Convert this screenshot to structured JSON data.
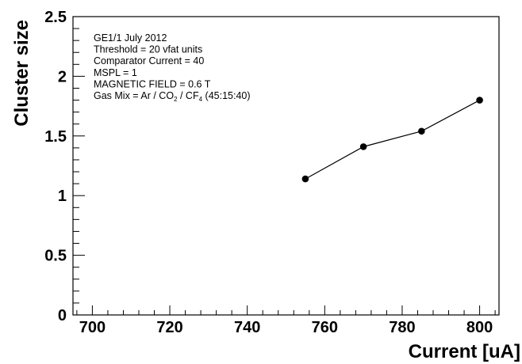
{
  "chart_data": {
    "type": "line",
    "title": "",
    "xlabel": "Current [uA]",
    "ylabel": "Cluster size",
    "xlim": [
      695,
      805
    ],
    "ylim": [
      0,
      2.5
    ],
    "x_ticks": [
      700,
      720,
      740,
      760,
      780,
      800
    ],
    "x_tick_labels": [
      "700",
      "720",
      "740",
      "760",
      "780",
      "800"
    ],
    "y_ticks": [
      0,
      0.5,
      1,
      1.5,
      2,
      2.5
    ],
    "y_tick_labels": [
      "0",
      "0.5",
      "1",
      "1.5",
      "2",
      "2.5"
    ],
    "grid": false,
    "legend": "none",
    "series": [
      {
        "x": [
          755,
          770,
          785,
          800
        ],
        "y": [
          1.14,
          1.41,
          1.54,
          1.8
        ],
        "color": "#000000",
        "marker": "circle"
      }
    ],
    "annotations": [
      {
        "text": "GE1/1 July 2012"
      },
      {
        "text": "Threshold = 20 vfat units"
      },
      {
        "text": "Comparator Current = 40"
      },
      {
        "text": "MSPL = 1"
      },
      {
        "text": "MAGNETIC FIELD = 0.6 T"
      },
      {
        "prefix": "Gas Mix = Ar / CO",
        "sub1": "2",
        "mid": " / CF",
        "sub2": "4",
        "suffix": " (45:15:40)"
      }
    ]
  }
}
